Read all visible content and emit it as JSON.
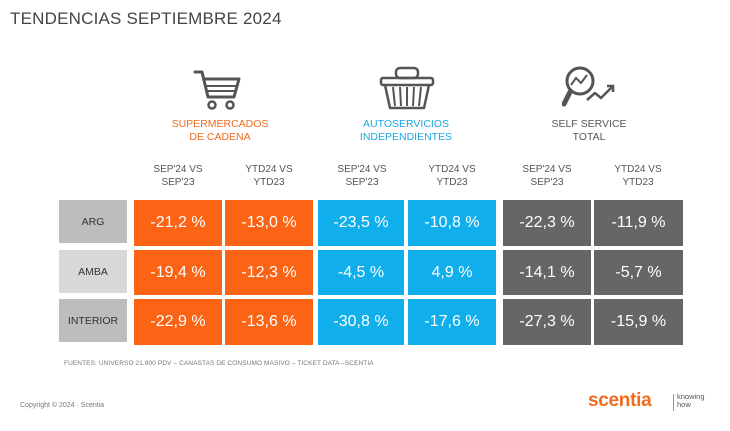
{
  "title": "TENDENCIAS  SEPTIEMBRE 2024",
  "segments": [
    {
      "label_line1": "SUPERMERCADOS",
      "label_line2": "DE CADENA",
      "color": "#f26a1b",
      "icon": "shopping-cart-icon"
    },
    {
      "label_line1": "AUTOSERVICIOS",
      "label_line2": "INDEPENDIENTES",
      "color": "#1aa7e0",
      "icon": "shopping-basket-icon"
    },
    {
      "label_line1": "SELF SERVICE",
      "label_line2": "TOTAL",
      "color": "#555555",
      "icon": "magnifier-trend-icon"
    }
  ],
  "column_headers": [
    {
      "line1": "SEP'24 VS",
      "line2": "SEP'23"
    },
    {
      "line1": "YTD24 VS",
      "line2": "YTD23"
    },
    {
      "line1": "SEP'24 VS",
      "line2": "SEP'23"
    },
    {
      "line1": "YTD24 VS",
      "line2": "YTD23"
    },
    {
      "line1": "SEP'24 VS",
      "line2": "SEP'23"
    },
    {
      "line1": "YTD24 VS",
      "line2": "YTD23"
    }
  ],
  "rows": [
    {
      "label": "ARG",
      "values": [
        "-21,2 %",
        "-13,0 %",
        "-23,5 %",
        "-10,8 %",
        "-22,3 %",
        "-11,9 %"
      ]
    },
    {
      "label": "AMBA",
      "values": [
        "-19,4 %",
        "-12,3 %",
        "-4,5 %",
        "4,9 %",
        "-14,1 %",
        "-5,7 %"
      ]
    },
    {
      "label": "INTERIOR",
      "values": [
        "-22,9 %",
        "-13,6 %",
        "-30,8 %",
        "-17,6 %",
        "-27,3 %",
        "-15,9 %"
      ]
    }
  ],
  "colors": {
    "orange": "#fb6315",
    "blue": "#10aeea",
    "gray": "#666666"
  },
  "source": "FUENTES: UNIVERSO 21.800 PDV – CANASTAS DE CONSUMO MASIVO – TICKET DATA  –SCENTIA",
  "copyright": "Copyright © 2024 · Scentia",
  "brand": {
    "name": "scentia",
    "tagline_line1": "knowing",
    "tagline_line2": "how"
  }
}
